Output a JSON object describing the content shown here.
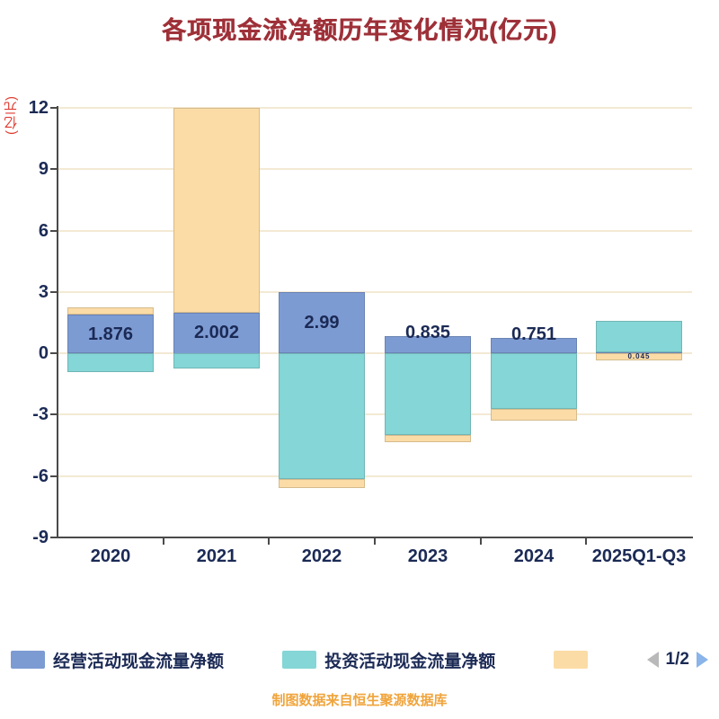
{
  "title": "各项现金流净额历年变化情况(亿元)",
  "y_axis_label": "(亿元)",
  "footer": "制图数据来自恒生聚源数据库",
  "colors": {
    "title": "#9e3038",
    "ylabel": "#e03a2f",
    "axis_text": "#1b2a55",
    "axis_line": "#4a4a4a",
    "grid": "#f3e9d4",
    "footer": "#f0a43b",
    "pagination_prev": "#b9b9b9",
    "pagination_next": "#8ab4ea"
  },
  "legend": {
    "items": [
      {
        "label": "经营活动现金流量净额",
        "color": "#7d9bd3"
      },
      {
        "label": "投资活动现金流量净额",
        "color": "#85d6d6"
      },
      {
        "label": "",
        "color": "#fbdca6"
      }
    ],
    "pagination": {
      "text": "1/2",
      "prev_icon": "left-arrow",
      "next_icon": "right-arrow"
    }
  },
  "chart_data": {
    "type": "bar",
    "stacked": true,
    "categories": [
      "2020",
      "2021",
      "2022",
      "2023",
      "2024",
      "2025Q1-Q3"
    ],
    "series": [
      {
        "name": "经营活动现金流量净额",
        "color": "#7d9bd3",
        "values": [
          1.876,
          2.002,
          2.99,
          0.835,
          0.751,
          0.045
        ]
      },
      {
        "name": "投资活动现金流量净额",
        "color": "#85d6d6",
        "values": [
          -0.92,
          -0.75,
          -6.15,
          -4.0,
          -2.72,
          1.55
        ]
      },
      {
        "name": "",
        "color": "#fbdca6",
        "values": [
          0.36,
          9.998,
          -0.45,
          -0.35,
          -0.57,
          -0.35
        ]
      }
    ],
    "bar_labels": [
      "1.876",
      "2.002",
      "2.99",
      "0.835",
      "0.751",
      "0.045"
    ],
    "ylim": [
      -9,
      12
    ],
    "yticks": [
      12,
      9,
      6,
      3,
      0,
      -3,
      -6,
      -9
    ],
    "grid": true,
    "legend_position": "bottom"
  }
}
